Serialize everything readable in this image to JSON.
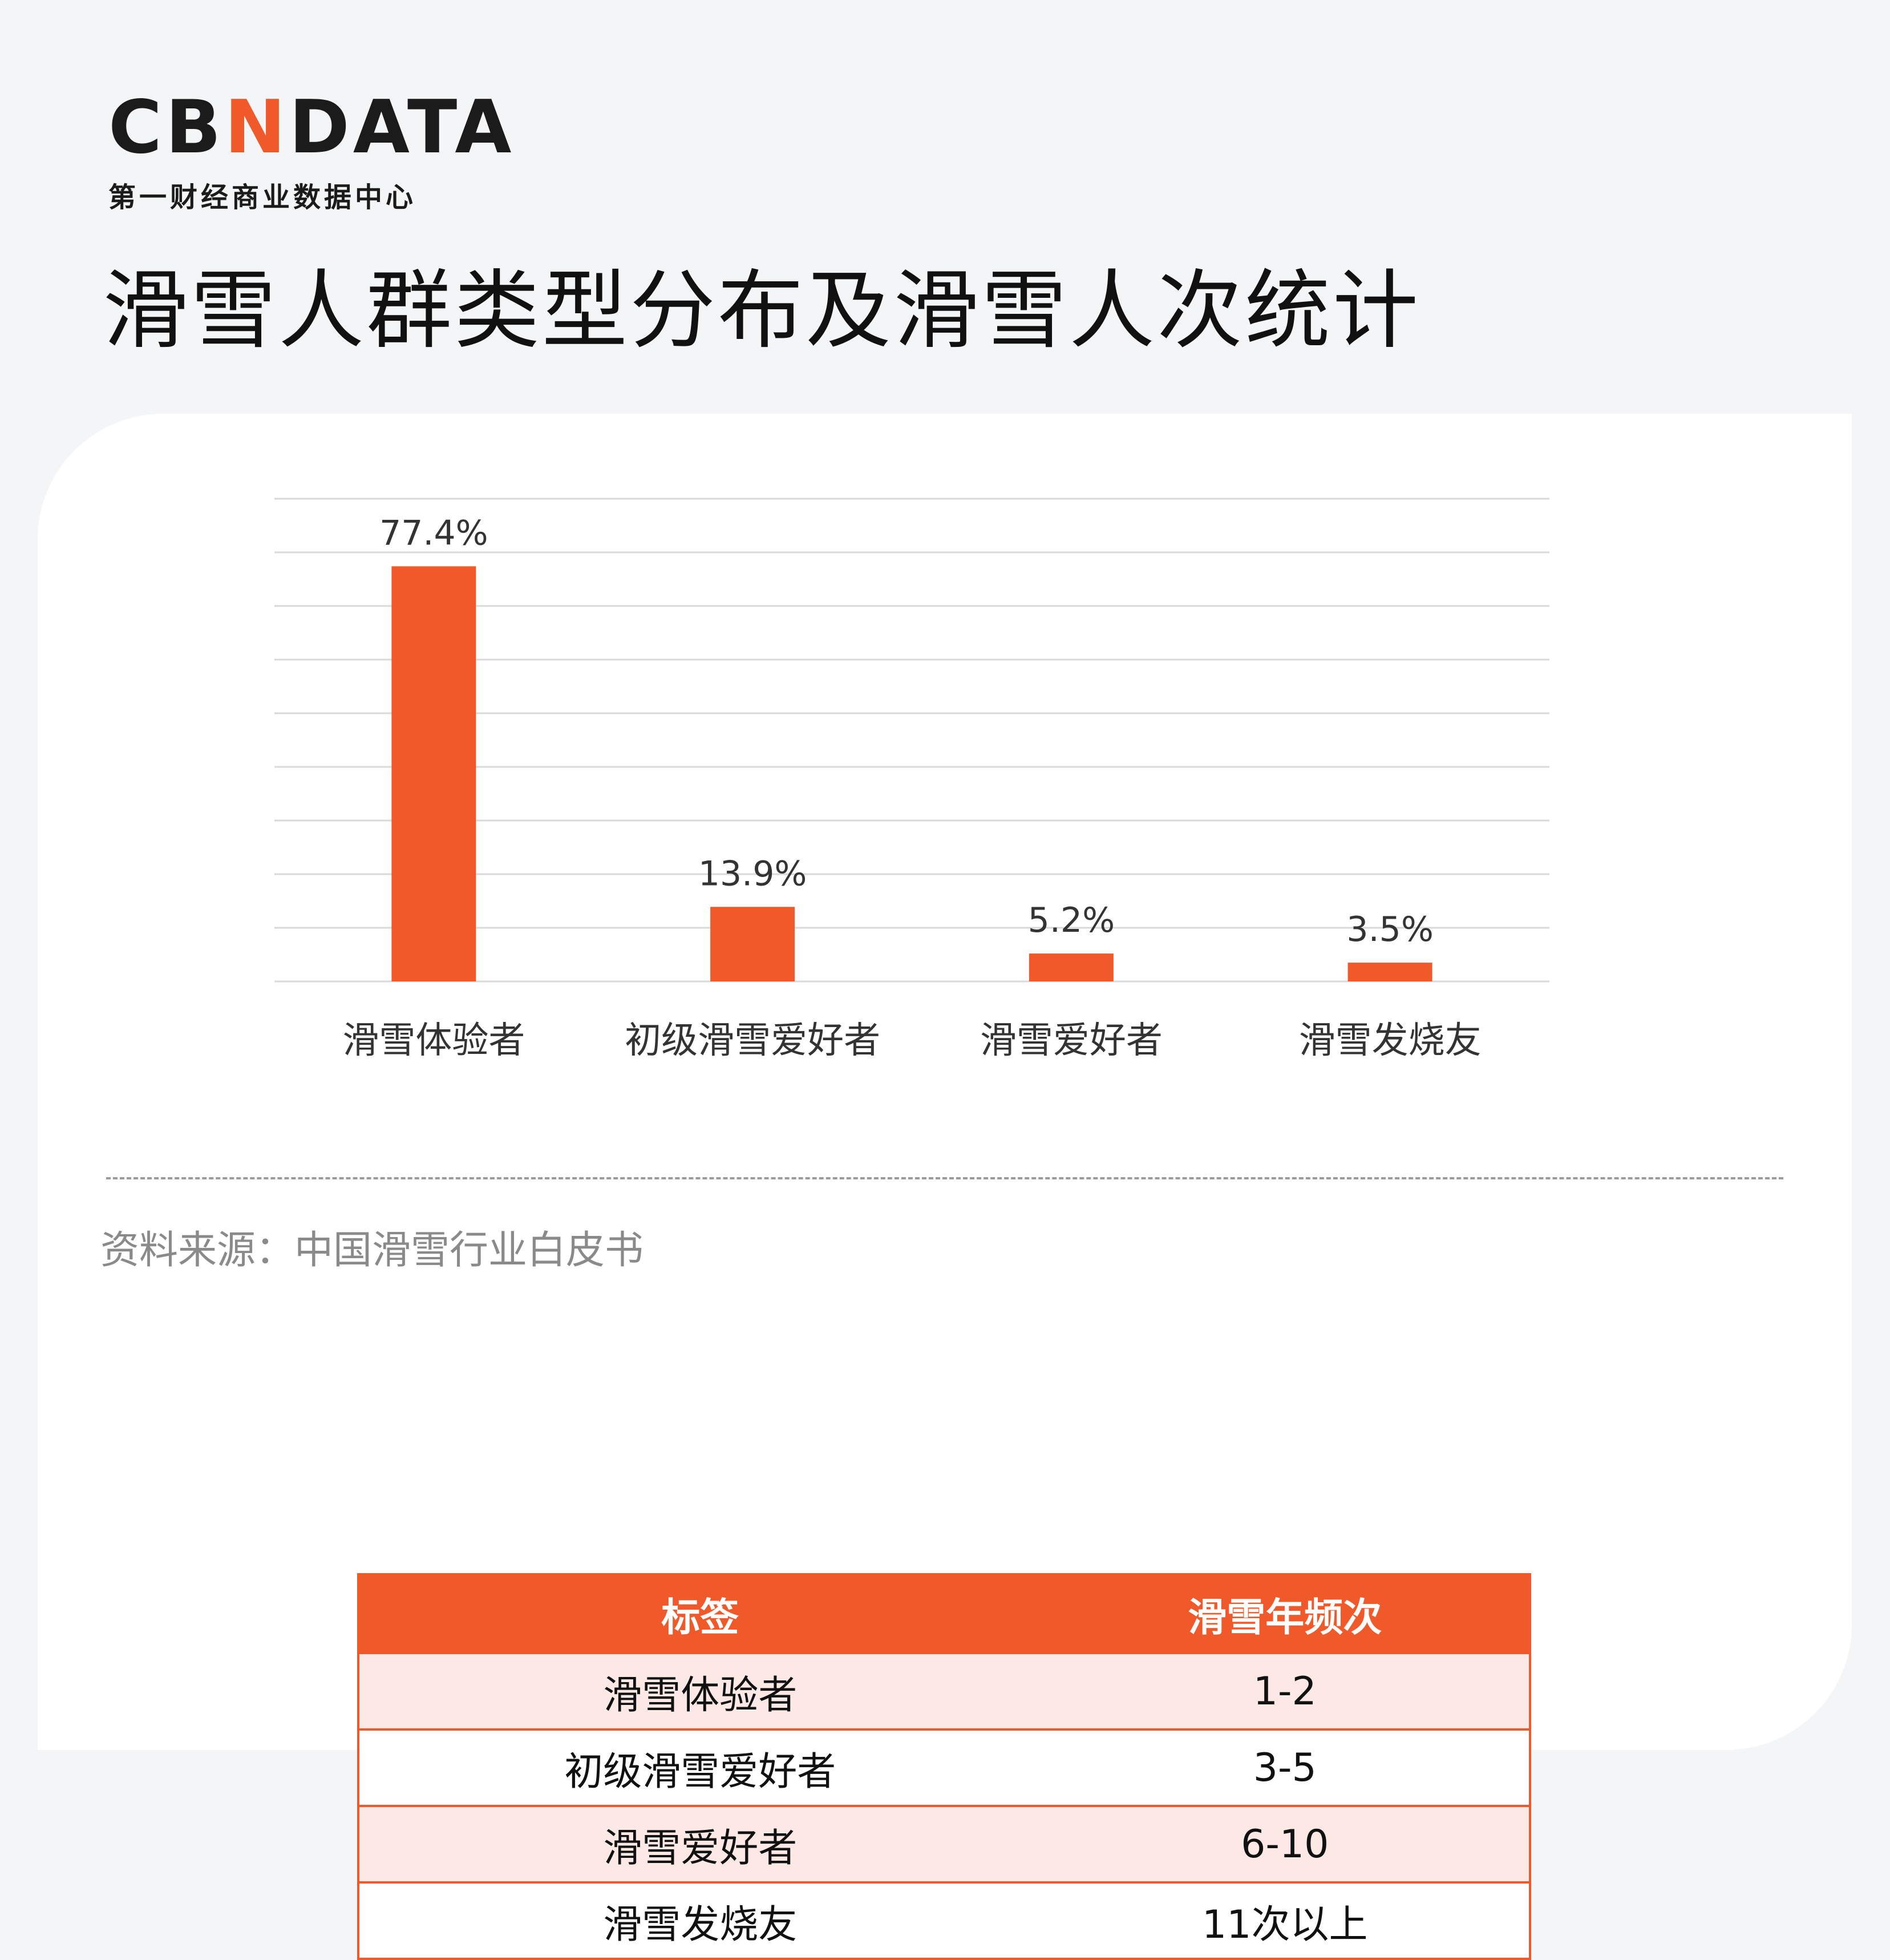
{
  "header": {
    "logo": {
      "text_before": "CB",
      "text_mark": "N",
      "text_after": "DATA",
      "subtitle": "第一财经商业数据中心"
    },
    "title": "滑雪人群类型分布及滑雪人次统计"
  },
  "colors": {
    "accent": "#f05a2b",
    "row_tint": "#fce9e6",
    "grid": "#d9d9d9",
    "background": "#f3f5f6"
  },
  "chart_data": {
    "type": "bar",
    "categories": [
      "滑雪体验者",
      "初级滑雪爱好者",
      "滑雪爱好者",
      "滑雪发烧友"
    ],
    "values": [
      77.4,
      13.9,
      5.2,
      3.5
    ],
    "labels": [
      "77.4%",
      "13.9%",
      "5.2%",
      "3.5%"
    ],
    "unit": "%",
    "ylim": [
      0,
      90
    ],
    "grid": true,
    "color": "#f05a2b"
  },
  "table": {
    "headers": [
      "标签",
      "滑雪年频次"
    ],
    "rows": [
      [
        "滑雪体验者",
        "1-2"
      ],
      [
        "初级滑雪爱好者",
        "3-5"
      ],
      [
        "滑雪爱好者",
        "6-10"
      ],
      [
        "滑雪发烧友",
        "11次以上"
      ]
    ]
  },
  "footer": {
    "source": "资料来源：中国滑雪行业白皮书"
  }
}
